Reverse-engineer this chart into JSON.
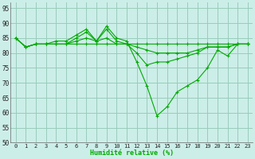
{
  "xlabel": "Humidité relative (%)",
  "xlim": [
    -0.5,
    23.5
  ],
  "ylim": [
    50,
    97
  ],
  "yticks": [
    50,
    55,
    60,
    65,
    70,
    75,
    80,
    85,
    90,
    95
  ],
  "xticks": [
    0,
    1,
    2,
    3,
    4,
    5,
    6,
    7,
    8,
    9,
    10,
    11,
    12,
    13,
    14,
    15,
    16,
    17,
    18,
    19,
    20,
    21,
    22,
    23
  ],
  "bg_color": "#cceee8",
  "grid_color": "#99ccbb",
  "line_color": "#00aa00",
  "series": [
    [
      85,
      82,
      83,
      83,
      84,
      84,
      86,
      88,
      84,
      89,
      85,
      84,
      77,
      69,
      59,
      62,
      67,
      69,
      71,
      75,
      81,
      79,
      83,
      83
    ],
    [
      85,
      82,
      83,
      83,
      83,
      83,
      85,
      87,
      84,
      88,
      84,
      83,
      80,
      76,
      77,
      77,
      78,
      79,
      80,
      82,
      82,
      82,
      83,
      83
    ],
    [
      85,
      82,
      83,
      83,
      83,
      83,
      84,
      85,
      84,
      85,
      83,
      83,
      82,
      81,
      80,
      80,
      80,
      80,
      81,
      82,
      82,
      82,
      83,
      83
    ],
    [
      85,
      82,
      83,
      83,
      83,
      83,
      83,
      83,
      83,
      83,
      83,
      83,
      83,
      83,
      83,
      83,
      83,
      83,
      83,
      83,
      83,
      83,
      83,
      83
    ]
  ]
}
